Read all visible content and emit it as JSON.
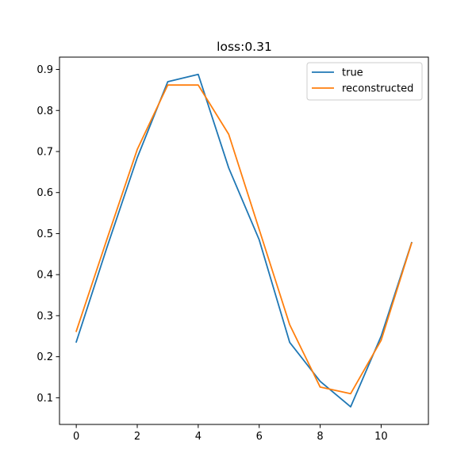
{
  "chart_data": {
    "type": "line",
    "title": "loss:0.31",
    "xlabel": "",
    "ylabel": "",
    "xlim": [
      -0.55,
      11.55
    ],
    "ylim": [
      0.035,
      0.93
    ],
    "xticks": [
      0,
      2,
      4,
      6,
      8,
      10
    ],
    "xtick_labels": [
      "0",
      "2",
      "4",
      "6",
      "8",
      "10"
    ],
    "yticks": [
      0.1,
      0.2,
      0.3,
      0.4,
      0.5,
      0.6,
      0.7,
      0.8,
      0.9
    ],
    "ytick_labels": [
      "0.1",
      "0.2",
      "0.3",
      "0.4",
      "0.5",
      "0.6",
      "0.7",
      "0.8",
      "0.9"
    ],
    "grid": false,
    "legend_position": "top-right",
    "x": [
      0,
      1,
      2,
      3,
      4,
      5,
      6,
      7,
      8,
      9,
      10,
      11
    ],
    "series": [
      {
        "name": "true",
        "color": "#1f77b4",
        "values": [
          0.236,
          0.465,
          0.685,
          0.87,
          0.888,
          0.66,
          0.485,
          0.235,
          0.14,
          0.078,
          0.25,
          0.478
        ]
      },
      {
        "name": "reconstructed",
        "color": "#ff7f0e",
        "values": [
          0.262,
          0.485,
          0.705,
          0.862,
          0.862,
          0.742,
          0.51,
          0.278,
          0.126,
          0.11,
          0.24,
          0.477
        ]
      }
    ]
  }
}
